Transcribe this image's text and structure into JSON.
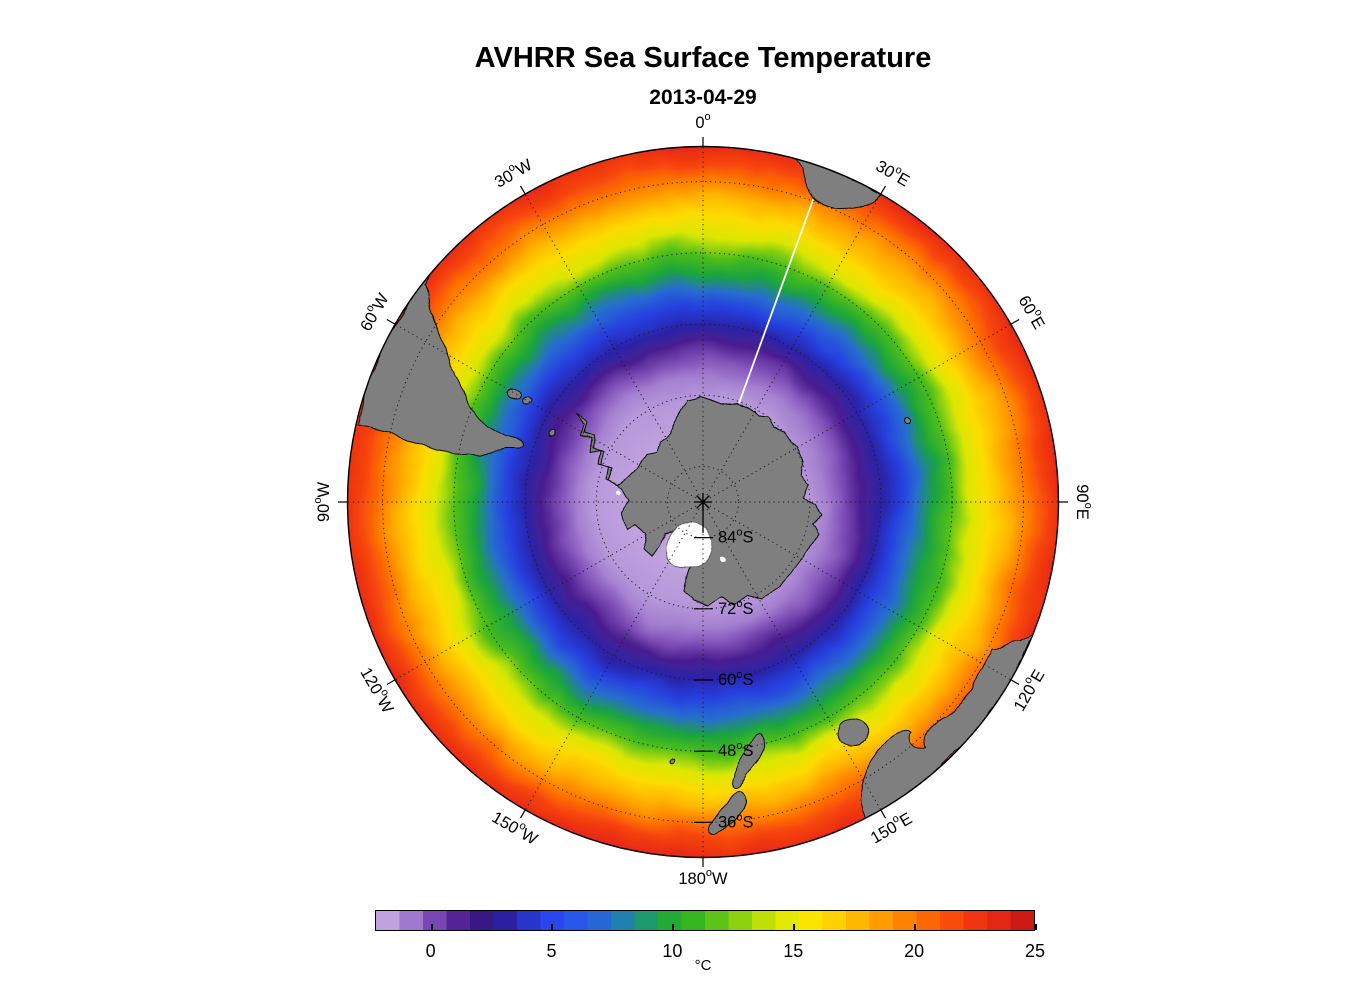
{
  "header": {
    "title": "AVHRR Sea Surface Temperature",
    "subtitle": "2013-04-29"
  },
  "chart_data": {
    "type": "heatmap",
    "title": "AVHRR Sea Surface Temperature",
    "date": "2013-04-29",
    "projection": {
      "name": "south polar stereographic",
      "center": "South Pole",
      "outer_latitude_deg": -30,
      "parallel_step_deg": 12,
      "meridian_step_deg": 30
    },
    "meridian_labels": [
      {
        "deg": "0",
        "hemi": "",
        "az": 0
      },
      {
        "deg": "30",
        "hemi": "E",
        "az": 30
      },
      {
        "deg": "60",
        "hemi": "E",
        "az": 60
      },
      {
        "deg": "90",
        "hemi": "E",
        "az": 90
      },
      {
        "deg": "120",
        "hemi": "E",
        "az": 120
      },
      {
        "deg": "150",
        "hemi": "E",
        "az": 150
      },
      {
        "deg": "180",
        "hemi": "W",
        "az": 180
      },
      {
        "deg": "150",
        "hemi": "W",
        "az": -150
      },
      {
        "deg": "120",
        "hemi": "W",
        "az": -120
      },
      {
        "deg": "90",
        "hemi": "W",
        "az": -90
      },
      {
        "deg": "60",
        "hemi": "W",
        "az": -60
      },
      {
        "deg": "30",
        "hemi": "W",
        "az": -30
      }
    ],
    "parallel_labels": [
      {
        "deg": "84",
        "hemi": "S",
        "lat": -84
      },
      {
        "deg": "72",
        "hemi": "S",
        "lat": -72
      },
      {
        "deg": "60",
        "hemi": "S",
        "lat": -60
      },
      {
        "deg": "48",
        "hemi": "S",
        "lat": -48
      },
      {
        "deg": "36",
        "hemi": "S",
        "lat": -36
      }
    ],
    "colorbar": {
      "label": "°C",
      "tick_values": [
        0,
        5,
        10,
        15,
        20,
        25
      ],
      "tick_labels": [
        "0",
        "5",
        "10",
        "15",
        "20",
        "25"
      ],
      "range_min": -2.3,
      "range_max": 25,
      "bands": 28
    },
    "colormap": [
      [
        -2.3,
        "#cdb4e6"
      ],
      [
        -1.4,
        "#b394d8"
      ],
      [
        -0.5,
        "#9468c6"
      ],
      [
        0.5,
        "#6a35aa"
      ],
      [
        1.5,
        "#471b8c"
      ],
      [
        2.3,
        "#321782"
      ],
      [
        3.0,
        "#2a1f9e"
      ],
      [
        3.8,
        "#2531c4"
      ],
      [
        5.0,
        "#2847ee"
      ],
      [
        6.3,
        "#2a5ce8"
      ],
      [
        7.5,
        "#2472c8"
      ],
      [
        8.5,
        "#1e938c"
      ],
      [
        9.5,
        "#1ca53c"
      ],
      [
        11.0,
        "#38b71c"
      ],
      [
        12.5,
        "#7bcc12"
      ],
      [
        14.0,
        "#c9e206"
      ],
      [
        15.3,
        "#f8ee00"
      ],
      [
        17.0,
        "#ffcb00"
      ],
      [
        18.5,
        "#ffa000"
      ],
      [
        20.0,
        "#ff7900"
      ],
      [
        21.4,
        "#fa4f08"
      ],
      [
        22.8,
        "#ef3013"
      ],
      [
        24.1,
        "#dc2015"
      ],
      [
        25.0,
        "#b81110"
      ]
    ],
    "sst_by_latitude": [
      {
        "lat": -84,
        "sst": -1.8
      },
      {
        "lat": -78,
        "sst": -1.8
      },
      {
        "lat": -72,
        "sst": -1.5
      },
      {
        "lat": -69,
        "sst": -1.0
      },
      {
        "lat": -66,
        "sst": 0.0
      },
      {
        "lat": -63,
        "sst": 1.4
      },
      {
        "lat": -60,
        "sst": 3.2
      },
      {
        "lat": -57,
        "sst": 4.6
      },
      {
        "lat": -54,
        "sst": 7.2
      },
      {
        "lat": -51,
        "sst": 9.5
      },
      {
        "lat": -48,
        "sst": 11.5
      },
      {
        "lat": -45,
        "sst": 14.5
      },
      {
        "lat": -42,
        "sst": 16.2
      },
      {
        "lat": -39,
        "sst": 17.8
      },
      {
        "lat": -36,
        "sst": 19.8
      },
      {
        "lat": -33,
        "sst": 21.8
      },
      {
        "lat": -30,
        "sst": 23.2
      }
    ],
    "land_color": "#7f7f7f",
    "ice_shelf_color": "#ffffff",
    "grid_color": "#1a1a1a",
    "rim_color": "#000000",
    "gap_line_color": "#ffffff",
    "gap_line_azimuth_deg_east": 20
  }
}
